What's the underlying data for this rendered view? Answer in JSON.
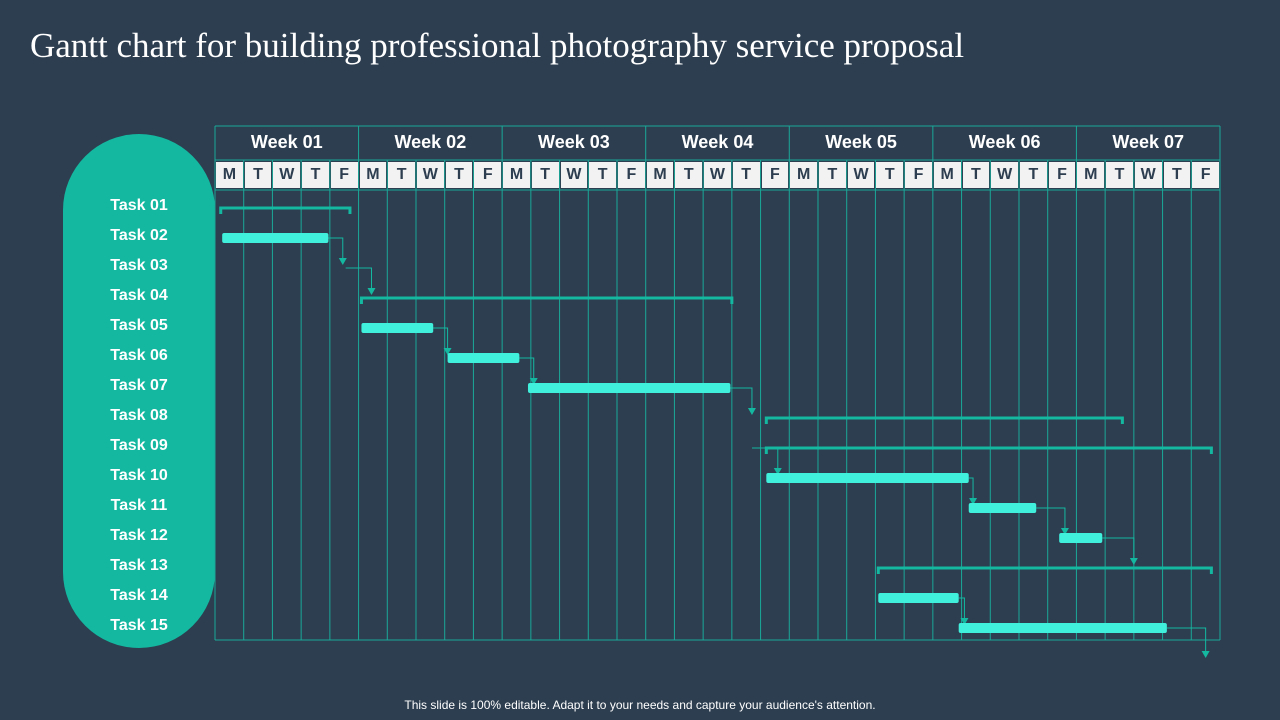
{
  "title": "Gantt chart for building professional photography service proposal",
  "footer": "This slide is 100% editable. Adapt it to your needs and capture your audience's attention.",
  "colors": {
    "background": "#2d3e50",
    "accent": "#14b8a0",
    "bar": "#40f0dc",
    "grid": "#1aa898",
    "day_bg": "#f2f2f2",
    "summary": "#14b8a0"
  },
  "chart_data": {
    "type": "gantt",
    "weeks": [
      "Week 01",
      "Week 02",
      "Week 03",
      "Week 04",
      "Week 05",
      "Week 06",
      "Week 07"
    ],
    "days": [
      "M",
      "T",
      "W",
      "T",
      "F"
    ],
    "tasks": [
      "Task 01",
      "Task 02",
      "Task 03",
      "Task 04",
      "Task 05",
      "Task 06",
      "Task 07",
      "Task 08",
      "Task 09",
      "Task 10",
      "Task 11",
      "Task 12",
      "Task 13",
      "Task 14",
      "Task 15"
    ],
    "summary_bars": [
      {
        "task": "Task 01",
        "start": 0.2,
        "end": 4.7
      },
      {
        "task": "Task 04",
        "start": 5.1,
        "end": 18.0
      },
      {
        "task": "Task 08",
        "start": 19.2,
        "end": 31.6
      },
      {
        "task": "Task 09",
        "start": 19.2,
        "end": 34.7
      },
      {
        "task": "Task 13",
        "start": 23.1,
        "end": 34.7
      }
    ],
    "task_bars": [
      {
        "task": "Task 02",
        "start": 0.25,
        "end": 3.95
      },
      {
        "task": "Task 05",
        "start": 5.1,
        "end": 7.6
      },
      {
        "task": "Task 06",
        "start": 8.1,
        "end": 10.6
      },
      {
        "task": "Task 07",
        "start": 10.9,
        "end": 17.95
      },
      {
        "task": "Task 10",
        "start": 19.2,
        "end": 26.25
      },
      {
        "task": "Task 11",
        "start": 26.25,
        "end": 28.6
      },
      {
        "task": "Task 12",
        "start": 29.4,
        "end": 30.9
      },
      {
        "task": "Task 14",
        "start": 23.1,
        "end": 25.9
      },
      {
        "task": "Task 15",
        "start": 25.9,
        "end": 33.15
      }
    ],
    "links": [
      {
        "from": "Task 02",
        "to": "Task 03",
        "x": 4.45
      },
      {
        "from": "Task 03",
        "to": "Task 04",
        "x": 5.45
      },
      {
        "from": "Task 05",
        "to": "Task 06",
        "x": 8.1
      },
      {
        "from": "Task 06",
        "to": "Task 07",
        "x": 11.1
      },
      {
        "from": "Task 07",
        "to": "Task 08",
        "x": 18.7
      },
      {
        "from": "Task 09",
        "to": "Task 10",
        "x": 19.6
      },
      {
        "from": "Task 10",
        "to": "Task 11",
        "x": 26.4
      },
      {
        "from": "Task 11",
        "to": "Task 12",
        "x": 29.6
      },
      {
        "from": "Task 12",
        "to": "Task 13",
        "x": 32.0
      },
      {
        "from": "Task 14",
        "to": "Task 15",
        "x": 26.1
      },
      {
        "from": "Task 15",
        "to": "end",
        "x": 34.5
      }
    ]
  }
}
